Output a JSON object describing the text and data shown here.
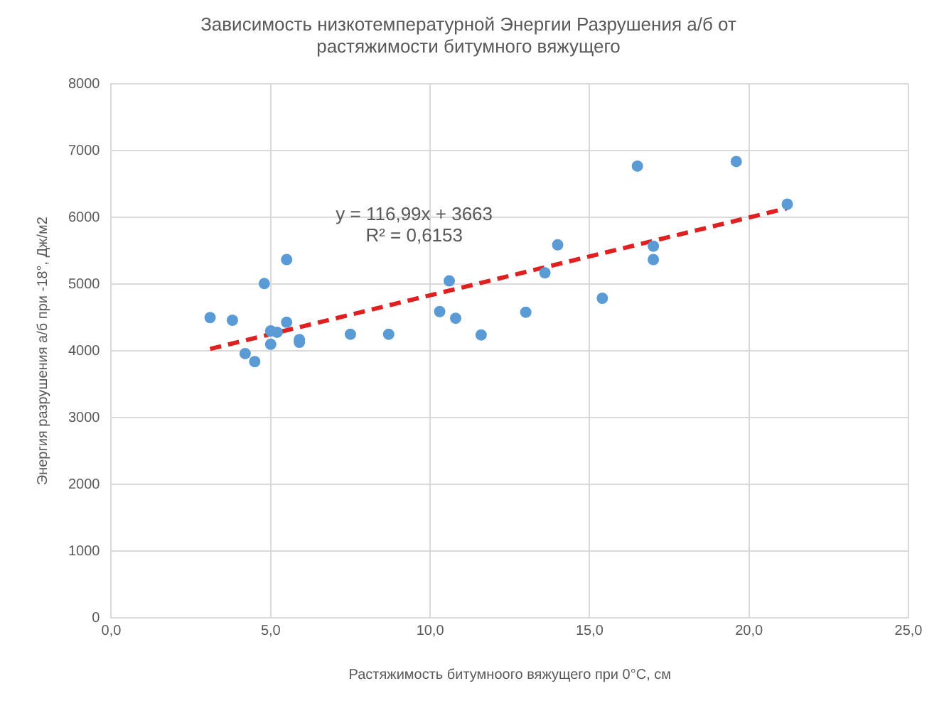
{
  "chart_data": {
    "type": "scatter",
    "title": "Зависимость низкотемпературной Энергии Разрушения а/б от растяжимости битумного вяжущего",
    "xlabel": "Растяжимость битумноого вяжущего при 0°С, см",
    "ylabel": "Энергия разрушения а/б при -18°, Дж/м2",
    "annotations": [
      "y = 116,99x + 3663",
      "R² = 0,6153"
    ],
    "series": [
      {
        "color": "#5b9bd5",
        "marker": "circle",
        "x": [
          3.1,
          3.8,
          4.2,
          4.5,
          4.8,
          5.0,
          5.0,
          5.2,
          5.5,
          5.5,
          5.9,
          5.9,
          7.5,
          8.7,
          10.3,
          10.6,
          10.8,
          11.6,
          13.0,
          13.6,
          14.0,
          15.4,
          16.5,
          17.0,
          17.0,
          19.6,
          21.2
        ],
        "values": [
          4500,
          4460,
          3960,
          3840,
          5010,
          4300,
          4100,
          4280,
          5370,
          4430,
          4170,
          4130,
          4250,
          4250,
          4590,
          5050,
          4490,
          4240,
          4580,
          5170,
          5590,
          4790,
          6770,
          5570,
          5370,
          6840,
          6200
        ]
      },
      {
        "type": "line",
        "color": "#e02020",
        "line_style": "dashed",
        "marker": "none",
        "x": [
          3.1,
          21.2
        ],
        "values": [
          4030,
          6140
        ]
      }
    ],
    "xlim": [
      0,
      25
    ],
    "xticks": [
      {
        "value": 0,
        "label": "0,0"
      },
      {
        "value": 5,
        "label": "5,0"
      },
      {
        "value": 10,
        "label": "10,0"
      },
      {
        "value": 15,
        "label": "15,0"
      },
      {
        "value": 20,
        "label": "20,0"
      },
      {
        "value": 25,
        "label": "25,0"
      }
    ],
    "ylim": [
      0,
      8000
    ],
    "yticks": [
      0,
      1000,
      2000,
      3000,
      4000,
      5000,
      6000,
      7000,
      8000
    ],
    "grid": true,
    "legend": false
  }
}
